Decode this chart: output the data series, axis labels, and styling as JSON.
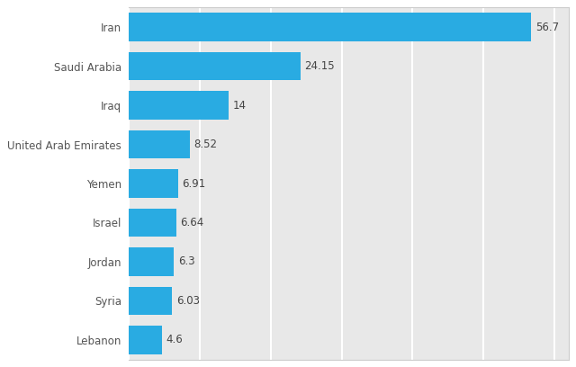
{
  "countries": [
    "Lebanon",
    "Syria",
    "Jordan",
    "Israel",
    "Yemen",
    "United Arab Emirates",
    "Iraq",
    "Saudi Arabia",
    "Iran"
  ],
  "values": [
    4.6,
    6.03,
    6.3,
    6.64,
    6.91,
    8.52,
    14,
    24.15,
    56.7
  ],
  "labels": [
    "4.6",
    "6.03",
    "6.3",
    "6.64",
    "6.91",
    "8.52",
    "14",
    "24.15",
    "56.7"
  ],
  "bar_color": "#29ABE2",
  "fig_bg_color": "#ffffff",
  "plot_bg_color": "#e8e8e8",
  "label_color": "#555555",
  "value_color": "#444444",
  "xlim": [
    0,
    62
  ],
  "bar_height": 0.72,
  "figsize": [
    6.4,
    4.08
  ],
  "dpi": 100,
  "label_fontsize": 8.5,
  "value_fontsize": 8.5,
  "grid_color": "#ffffff",
  "grid_linewidth": 1.5,
  "border_color": "#cccccc",
  "xtick_positions": [
    0,
    10,
    20,
    30,
    40,
    50,
    60
  ]
}
